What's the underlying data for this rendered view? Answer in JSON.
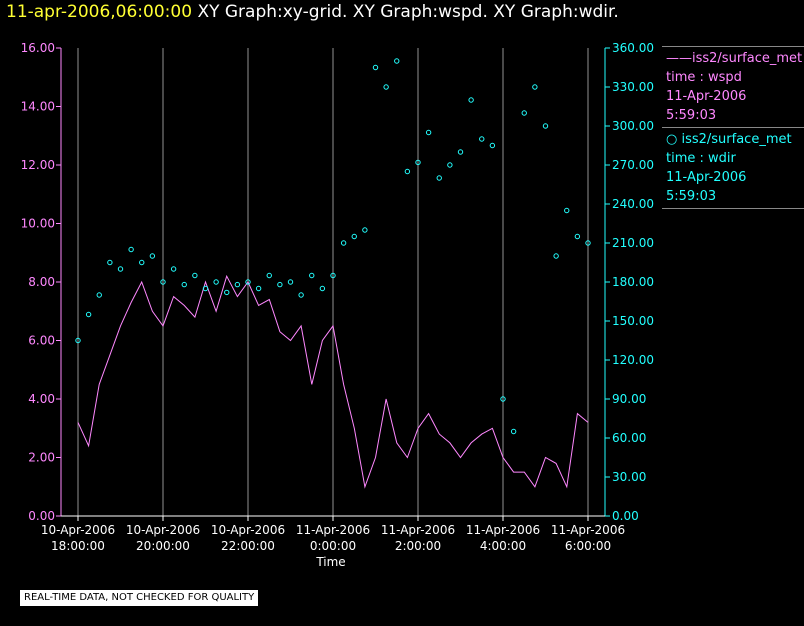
{
  "header": {
    "timestamp": "11-apr-2006,06:00:00",
    "title_rest": "XY Graph:xy-grid.  XY Graph:wspd.  XY Graph:wdir."
  },
  "legend": {
    "wspd": {
      "line1": "——iss2/surface_met",
      "line2": "time : wspd",
      "line3": "11-Apr-2006",
      "line4": "5:59:03"
    },
    "wdir": {
      "line1": "○  iss2/surface_met",
      "line2": "time : wdir",
      "line3": "11-Apr-2006",
      "line4": "5:59:03"
    }
  },
  "disclaimer": "REAL-TIME DATA, NOT CHECKED FOR QUALITY",
  "colors": {
    "wspd": "#ff88ff",
    "wdir": "#22ffff",
    "grid": "#d0d0d0",
    "axis_left": "#ff88ff",
    "axis_right": "#22ffff"
  },
  "chart_data": {
    "type": "line",
    "xlabel": "Time",
    "xlim_hours": [
      17.6,
      30.4
    ],
    "x_ticks": [
      {
        "h": 18,
        "line1": "10-Apr-2006",
        "line2": "18:00:00"
      },
      {
        "h": 20,
        "line1": "10-Apr-2006",
        "line2": "20:00:00"
      },
      {
        "h": 22,
        "line1": "10-Apr-2006",
        "line2": "22:00:00"
      },
      {
        "h": 24,
        "line1": "11-Apr-2006",
        "line2": "0:00:00"
      },
      {
        "h": 26,
        "line1": "11-Apr-2006",
        "line2": "2:00:00"
      },
      {
        "h": 28,
        "line1": "11-Apr-2006",
        "line2": "4:00:00"
      },
      {
        "h": 30,
        "line1": "11-Apr-2006",
        "line2": "6:00:00"
      }
    ],
    "y_left": {
      "lim": [
        0,
        16
      ],
      "ticks": [
        "0.00",
        "2.00",
        "4.00",
        "6.00",
        "8.00",
        "10.00",
        "12.00",
        "14.00",
        "16.00"
      ]
    },
    "y_right": {
      "lim": [
        0,
        360
      ],
      "ticks": [
        "0.00",
        "30.00",
        "60.00",
        "90.00",
        "120.00",
        "150.00",
        "180.00",
        "210.00",
        "240.00",
        "270.00",
        "300.00",
        "330.00",
        "360.00"
      ]
    },
    "grid": "vertical",
    "series": [
      {
        "name": "wspd",
        "axis": "left",
        "style": "line",
        "points": [
          [
            18,
            3.2
          ],
          [
            18.25,
            2.4
          ],
          [
            18.5,
            4.5
          ],
          [
            18.75,
            5.5
          ],
          [
            19,
            6.5
          ],
          [
            19.25,
            7.3
          ],
          [
            19.5,
            8.0
          ],
          [
            19.75,
            7.0
          ],
          [
            20,
            6.5
          ],
          [
            20.25,
            7.5
          ],
          [
            20.5,
            7.2
          ],
          [
            20.75,
            6.8
          ],
          [
            21,
            8.0
          ],
          [
            21.25,
            7.0
          ],
          [
            21.5,
            8.2
          ],
          [
            21.75,
            7.5
          ],
          [
            22,
            8.0
          ],
          [
            22.25,
            7.2
          ],
          [
            22.5,
            7.4
          ],
          [
            22.75,
            6.3
          ],
          [
            23,
            6.0
          ],
          [
            23.25,
            6.5
          ],
          [
            23.5,
            4.5
          ],
          [
            23.75,
            6.0
          ],
          [
            24,
            6.5
          ],
          [
            24.25,
            4.5
          ],
          [
            24.5,
            3.0
          ],
          [
            24.75,
            1.0
          ],
          [
            25,
            2.0
          ],
          [
            25.25,
            4.0
          ],
          [
            25.5,
            2.5
          ],
          [
            25.75,
            2.0
          ],
          [
            26,
            3.0
          ],
          [
            26.25,
            3.5
          ],
          [
            26.5,
            2.8
          ],
          [
            26.75,
            2.5
          ],
          [
            27,
            2.0
          ],
          [
            27.25,
            2.5
          ],
          [
            27.5,
            2.8
          ],
          [
            27.75,
            3.0
          ],
          [
            28,
            2.0
          ],
          [
            28.25,
            1.5
          ],
          [
            28.5,
            1.5
          ],
          [
            28.75,
            1.0
          ],
          [
            29,
            2.0
          ],
          [
            29.25,
            1.8
          ],
          [
            29.5,
            1.0
          ],
          [
            29.75,
            3.5
          ],
          [
            30,
            3.2
          ]
        ]
      },
      {
        "name": "wdir",
        "axis": "right",
        "style": "markers",
        "points": [
          [
            18,
            135
          ],
          [
            18.25,
            155
          ],
          [
            18.5,
            170
          ],
          [
            18.75,
            195
          ],
          [
            19,
            190
          ],
          [
            19.25,
            205
          ],
          [
            19.5,
            195
          ],
          [
            19.75,
            200
          ],
          [
            20,
            180
          ],
          [
            20.25,
            190
          ],
          [
            20.5,
            178
          ],
          [
            20.75,
            185
          ],
          [
            21,
            175
          ],
          [
            21.25,
            180
          ],
          [
            21.5,
            172
          ],
          [
            21.75,
            178
          ],
          [
            22,
            180
          ],
          [
            22.25,
            175
          ],
          [
            22.5,
            185
          ],
          [
            22.75,
            178
          ],
          [
            23,
            180
          ],
          [
            23.25,
            170
          ],
          [
            23.5,
            185
          ],
          [
            23.75,
            175
          ],
          [
            24,
            185
          ],
          [
            24.25,
            210
          ],
          [
            24.5,
            215
          ],
          [
            24.75,
            220
          ],
          [
            25,
            345
          ],
          [
            25.25,
            330
          ],
          [
            25.5,
            350
          ],
          [
            25.75,
            265
          ],
          [
            26,
            272
          ],
          [
            26.25,
            295
          ],
          [
            26.5,
            260
          ],
          [
            26.75,
            270
          ],
          [
            27,
            280
          ],
          [
            27.25,
            320
          ],
          [
            27.5,
            290
          ],
          [
            27.75,
            285
          ],
          [
            28,
            90
          ],
          [
            28.25,
            65
          ],
          [
            28.5,
            310
          ],
          [
            28.75,
            330
          ],
          [
            29,
            300
          ],
          [
            29.25,
            200
          ],
          [
            29.5,
            235
          ],
          [
            29.75,
            215
          ],
          [
            30,
            210
          ]
        ]
      }
    ]
  }
}
